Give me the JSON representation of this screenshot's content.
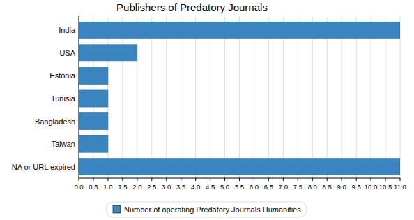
{
  "chart_data": {
    "type": "bar",
    "title": "Publishers of Predatory Journals",
    "orientation": "horizontal",
    "categories": [
      "India",
      "USA",
      "Estonia",
      "Tunisia",
      "Bangladesh",
      "Taiwan",
      "NA or URL expired"
    ],
    "series": [
      {
        "name": "Number of operating Predatory Journals Humanities",
        "color": "#3a84bf",
        "values": [
          11,
          2,
          1,
          1,
          1,
          1,
          11
        ]
      }
    ],
    "xlim": [
      0,
      11
    ],
    "xticks": [
      {
        "value": 0,
        "label": "0.0"
      },
      {
        "value": 0.5,
        "label": "0.5"
      },
      {
        "value": 1,
        "label": "1.0"
      },
      {
        "value": 1.5,
        "label": "1.5"
      },
      {
        "value": 2,
        "label": "2.0"
      },
      {
        "value": 2.5,
        "label": "2.5"
      },
      {
        "value": 3,
        "label": "3.0"
      },
      {
        "value": 3.5,
        "label": "3.5"
      },
      {
        "value": 4,
        "label": "4.0"
      },
      {
        "value": 4.5,
        "label": "4.5"
      },
      {
        "value": 5,
        "label": "5.0"
      },
      {
        "value": 5.5,
        "label": "5.5"
      },
      {
        "value": 6,
        "label": "6.0"
      },
      {
        "value": 6.5,
        "label": "6.5"
      },
      {
        "value": 7,
        "label": "7.0"
      },
      {
        "value": 7.5,
        "label": "7.5"
      },
      {
        "value": 8,
        "label": "8.0"
      },
      {
        "value": 8.5,
        "label": "8.5"
      },
      {
        "value": 9,
        "label": "9.0"
      },
      {
        "value": 9.5,
        "label": "9.5"
      },
      {
        "value": 10,
        "label": "10.0"
      },
      {
        "value": 10.5,
        "label": "10.5"
      },
      {
        "value": 11,
        "label": "11.0"
      }
    ],
    "grid": true,
    "legend": "bottom"
  }
}
